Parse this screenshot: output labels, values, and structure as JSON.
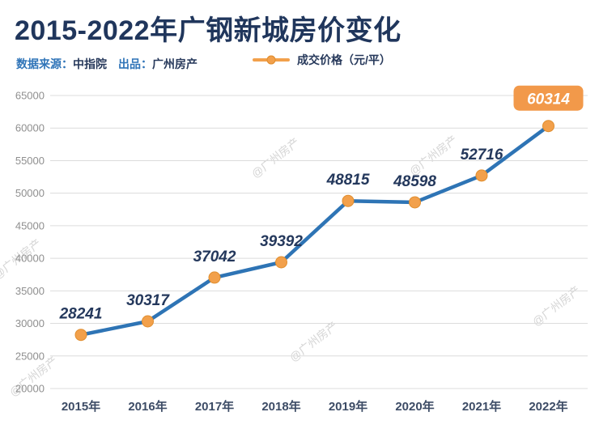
{
  "header": {
    "title": "2015-2022年广钢新城房价变化",
    "source_label": "数据来源：",
    "source_value": "中指院",
    "publisher_label": "出品：",
    "publisher_value": "广州房产",
    "legend_label": "成交价格（元/平）"
  },
  "watermark": {
    "text": "@广州房产"
  },
  "chart_data": {
    "type": "line",
    "title": "2015-2022年广钢新城房价变化",
    "categories": [
      "2015年",
      "2016年",
      "2017年",
      "2018年",
      "2019年",
      "2020年",
      "2021年",
      "2022年"
    ],
    "series": [
      {
        "name": "成交价格（元/平）",
        "values": [
          28241,
          30317,
          37042,
          39392,
          48815,
          48598,
          52716,
          60314
        ]
      }
    ],
    "xlabel": "",
    "ylabel": "",
    "ylim": [
      20000,
      65000
    ],
    "ytick_step": 5000,
    "grid": true,
    "legend_position": "top",
    "highlight_last": true,
    "line_color": "#2E74B5",
    "marker_color": "#F2A04B",
    "marker_ring_color": "#E08E2F",
    "badge_color": "#F2994A",
    "label_color": "#24385C",
    "grid_color": "#DCDCDC",
    "ytick_color": "#8F8F8F",
    "xtick_color": "#3D4C66"
  }
}
